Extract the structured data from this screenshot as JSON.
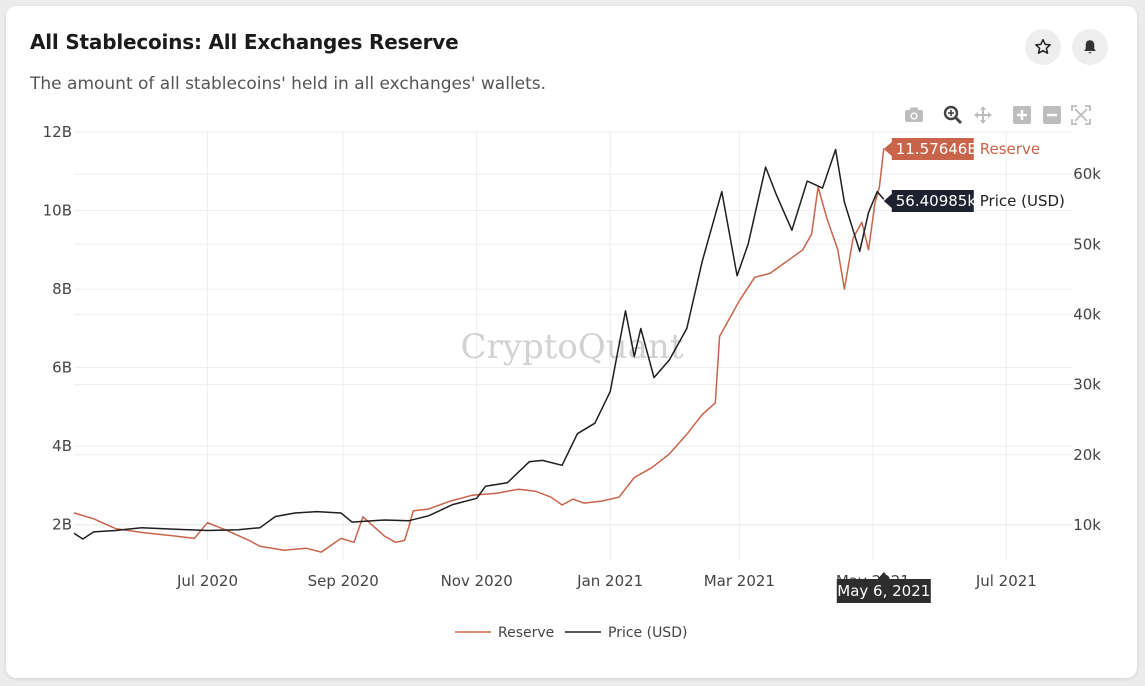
{
  "header": {
    "title": "All Stablecoins: All Exchanges Reserve",
    "subtitle": "The amount of all stablecoins' held in all exchanges' wallets."
  },
  "icons": {
    "favorite": "star-icon",
    "alert": "bell-icon",
    "modebar": [
      "camera-icon",
      "zoom-icon",
      "pan-icon",
      "zoom-in-icon",
      "zoom-out-icon",
      "autoscale-icon"
    ]
  },
  "watermark": "CryptoQuant",
  "colors": {
    "reserve": "#c8644a",
    "price": "#1e1e1e",
    "grid": "#ededed"
  },
  "hover": {
    "reserve_value": "11.57646B",
    "reserve_label": "Reserve",
    "price_value": "56.40985k",
    "price_label": "Price (USD)",
    "date": "May 6, 2021"
  },
  "chart_data": {
    "type": "line",
    "x_range": [
      "2020-05-01",
      "2021-07-31"
    ],
    "x_ticks": [
      {
        "date": "2020-07-01",
        "label": "Jul 2020"
      },
      {
        "date": "2020-09-01",
        "label": "Sep 2020"
      },
      {
        "date": "2020-11-01",
        "label": "Nov 2020"
      },
      {
        "date": "2021-01-01",
        "label": "Jan 2021"
      },
      {
        "date": "2021-03-01",
        "label": "Mar 2021"
      },
      {
        "date": "2021-05-01",
        "label": "May 2021"
      },
      {
        "date": "2021-07-01",
        "label": "Jul 2021"
      }
    ],
    "y_left": {
      "range": [
        1.1,
        12
      ],
      "ticks": [
        2,
        4,
        6,
        8,
        10,
        12
      ],
      "tick_labels": [
        "2B",
        "4B",
        "6B",
        "8B",
        "10B",
        "12B"
      ],
      "unit": "B"
    },
    "y_right": {
      "range": [
        5,
        66
      ],
      "ticks": [
        10,
        20,
        30,
        40,
        50,
        60
      ],
      "tick_labels": [
        "10k",
        "20k",
        "30k",
        "40k",
        "50k",
        "60k"
      ],
      "unit": "k"
    },
    "grid": true,
    "legend_position": "bottom-center",
    "series": [
      {
        "name": "Reserve",
        "axis": "left",
        "color": "#c8644a",
        "points": [
          [
            "2020-05-01",
            2.3
          ],
          [
            "2020-05-10",
            2.15
          ],
          [
            "2020-05-20",
            1.9
          ],
          [
            "2020-06-01",
            1.8
          ],
          [
            "2020-06-15",
            1.72
          ],
          [
            "2020-06-25",
            1.65
          ],
          [
            "2020-07-01",
            2.05
          ],
          [
            "2020-07-10",
            1.85
          ],
          [
            "2020-07-20",
            1.6
          ],
          [
            "2020-07-25",
            1.45
          ],
          [
            "2020-08-05",
            1.35
          ],
          [
            "2020-08-15",
            1.4
          ],
          [
            "2020-08-22",
            1.3
          ],
          [
            "2020-08-31",
            1.65
          ],
          [
            "2020-09-06",
            1.55
          ],
          [
            "2020-09-10",
            2.2
          ],
          [
            "2020-09-15",
            1.95
          ],
          [
            "2020-09-20",
            1.7
          ],
          [
            "2020-09-25",
            1.55
          ],
          [
            "2020-09-29",
            1.6
          ],
          [
            "2020-10-01",
            1.95
          ],
          [
            "2020-10-03",
            2.35
          ],
          [
            "2020-10-10",
            2.4
          ],
          [
            "2020-10-20",
            2.6
          ],
          [
            "2020-10-30",
            2.75
          ],
          [
            "2020-11-10",
            2.8
          ],
          [
            "2020-11-20",
            2.9
          ],
          [
            "2020-11-28",
            2.85
          ],
          [
            "2020-12-05",
            2.7
          ],
          [
            "2020-12-10",
            2.5
          ],
          [
            "2020-12-15",
            2.65
          ],
          [
            "2020-12-20",
            2.55
          ],
          [
            "2020-12-28",
            2.6
          ],
          [
            "2021-01-05",
            2.7
          ],
          [
            "2021-01-12",
            3.2
          ],
          [
            "2021-01-20",
            3.45
          ],
          [
            "2021-01-28",
            3.8
          ],
          [
            "2021-02-05",
            4.3
          ],
          [
            "2021-02-12",
            4.8
          ],
          [
            "2021-02-18",
            5.1
          ],
          [
            "2021-02-20",
            6.8
          ],
          [
            "2021-02-25",
            7.3
          ],
          [
            "2021-03-01",
            7.7
          ],
          [
            "2021-03-08",
            8.3
          ],
          [
            "2021-03-15",
            8.4
          ],
          [
            "2021-03-20",
            8.6
          ],
          [
            "2021-03-25",
            8.8
          ],
          [
            "2021-03-30",
            9.0
          ],
          [
            "2021-04-03",
            9.4
          ],
          [
            "2021-04-06",
            10.6
          ],
          [
            "2021-04-10",
            9.8
          ],
          [
            "2021-04-15",
            9.0
          ],
          [
            "2021-04-18",
            8.0
          ],
          [
            "2021-04-22",
            9.3
          ],
          [
            "2021-04-26",
            9.7
          ],
          [
            "2021-04-29",
            9.0
          ],
          [
            "2021-05-02",
            10.2
          ],
          [
            "2021-05-04",
            10.6
          ],
          [
            "2021-05-06",
            11.58
          ]
        ]
      },
      {
        "name": "Price (USD)",
        "axis": "right",
        "color": "#1e1e1e",
        "points": [
          [
            "2020-05-01",
            8.8
          ],
          [
            "2020-05-05",
            8.0
          ],
          [
            "2020-05-10",
            9.0
          ],
          [
            "2020-05-20",
            9.2
          ],
          [
            "2020-06-01",
            9.6
          ],
          [
            "2020-06-15",
            9.4
          ],
          [
            "2020-07-01",
            9.2
          ],
          [
            "2020-07-15",
            9.3
          ],
          [
            "2020-07-25",
            9.6
          ],
          [
            "2020-08-01",
            11.2
          ],
          [
            "2020-08-10",
            11.7
          ],
          [
            "2020-08-20",
            11.9
          ],
          [
            "2020-08-31",
            11.7
          ],
          [
            "2020-09-05",
            10.4
          ],
          [
            "2020-09-20",
            10.7
          ],
          [
            "2020-10-01",
            10.6
          ],
          [
            "2020-10-10",
            11.3
          ],
          [
            "2020-10-21",
            12.9
          ],
          [
            "2020-11-01",
            13.8
          ],
          [
            "2020-11-05",
            15.5
          ],
          [
            "2020-11-15",
            16.0
          ],
          [
            "2020-11-25",
            19.0
          ],
          [
            "2020-12-01",
            19.2
          ],
          [
            "2020-12-10",
            18.5
          ],
          [
            "2020-12-17",
            23.0
          ],
          [
            "2020-12-25",
            24.5
          ],
          [
            "2021-01-01",
            29.0
          ],
          [
            "2021-01-08",
            40.5
          ],
          [
            "2021-01-12",
            34.0
          ],
          [
            "2021-01-15",
            38.0
          ],
          [
            "2021-01-21",
            31.0
          ],
          [
            "2021-01-28",
            33.5
          ],
          [
            "2021-02-05",
            38.0
          ],
          [
            "2021-02-12",
            47.5
          ],
          [
            "2021-02-21",
            57.5
          ],
          [
            "2021-02-28",
            45.5
          ],
          [
            "2021-03-05",
            50.0
          ],
          [
            "2021-03-13",
            61.0
          ],
          [
            "2021-03-18",
            57.0
          ],
          [
            "2021-03-25",
            52.0
          ],
          [
            "2021-04-01",
            59.0
          ],
          [
            "2021-04-08",
            58.0
          ],
          [
            "2021-04-14",
            63.5
          ],
          [
            "2021-04-18",
            56.0
          ],
          [
            "2021-04-25",
            49.0
          ],
          [
            "2021-04-29",
            54.5
          ],
          [
            "2021-05-03",
            57.5
          ],
          [
            "2021-05-06",
            56.41
          ]
        ]
      }
    ]
  }
}
